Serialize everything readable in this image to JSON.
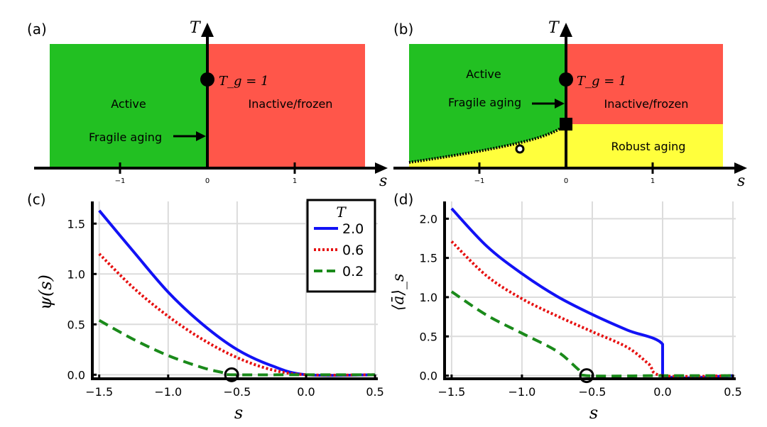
{
  "chart_data": [
    {
      "panel": "(a)",
      "type": "phase-diagram",
      "x_axis_label": "s",
      "y_axis_label": "T",
      "x_ticks": [
        {
          "value": -1,
          "label": "−1"
        },
        {
          "value": 0,
          "label": "0"
        },
        {
          "value": 1,
          "label": "1"
        }
      ],
      "xlim": [
        -1.8,
        1.8
      ],
      "regions": [
        {
          "name": "Active",
          "color": "#22c022",
          "x_range": [
            -1.8,
            0
          ]
        },
        {
          "name": "Inactive/frozen",
          "color": "#ff564a",
          "x_range": [
            0,
            1.8
          ]
        }
      ],
      "annotations": {
        "tg": "T_g = 1",
        "fragile": "Fragile aging"
      }
    },
    {
      "panel": "(b)",
      "type": "phase-diagram",
      "x_axis_label": "s",
      "y_axis_label": "T",
      "x_ticks": [
        {
          "value": -1,
          "label": "−1"
        },
        {
          "value": 0,
          "label": "0"
        },
        {
          "value": 1,
          "label": "1"
        }
      ],
      "xlim": [
        -1.8,
        1.8
      ],
      "regions": [
        {
          "name": "Active",
          "color": "#22c022"
        },
        {
          "name": "Inactive/frozen",
          "color": "#ff564a"
        },
        {
          "name": "Robust aging",
          "color": "#ffff3c"
        }
      ],
      "annotations": {
        "tg": "T_g = 1",
        "fragile": "Fragile aging"
      }
    },
    {
      "panel": "(c)",
      "type": "line",
      "xlabel": "s",
      "ylabel": "ψ(s)",
      "xlim": [
        -1.55,
        0.52
      ],
      "ylim": [
        -0.04,
        1.72
      ],
      "xticks": [
        -1.5,
        -1.0,
        -0.5,
        0.0,
        0.5
      ],
      "yticks": [
        0.0,
        0.5,
        1.0,
        1.5
      ],
      "grid": true,
      "legend_title": "T",
      "legend_position": "top-right",
      "marker_open_circle": {
        "x": -0.54,
        "y": 0.0
      },
      "series": [
        {
          "name": "2.0",
          "color": "#1212f5",
          "dash": "solid",
          "x": [
            -1.5,
            -1.25,
            -1.0,
            -0.75,
            -0.5,
            -0.25,
            0.0,
            0.5
          ],
          "y": [
            1.63,
            1.22,
            0.82,
            0.5,
            0.25,
            0.09,
            0.0,
            0.0
          ]
        },
        {
          "name": "0.6",
          "color": "#e61010",
          "dash": "dotted",
          "x": [
            -1.5,
            -1.25,
            -1.0,
            -0.75,
            -0.5,
            -0.25,
            0.0,
            0.5
          ],
          "y": [
            1.2,
            0.86,
            0.58,
            0.35,
            0.17,
            0.05,
            0.0,
            0.0
          ]
        },
        {
          "name": "0.2",
          "color": "#1a8a1a",
          "dash": "dashed",
          "x": [
            -1.5,
            -1.25,
            -1.0,
            -0.75,
            -0.6,
            -0.54,
            0.0,
            0.5
          ],
          "y": [
            0.54,
            0.35,
            0.19,
            0.07,
            0.02,
            0.0,
            0.0,
            0.0
          ]
        }
      ]
    },
    {
      "panel": "(d)",
      "type": "line",
      "xlabel": "s",
      "ylabel": "⟨ā⟩_s",
      "xlim": [
        -1.55,
        0.52
      ],
      "ylim": [
        -0.04,
        2.22
      ],
      "xticks": [
        -1.5,
        -1.0,
        -0.5,
        0.0,
        0.5
      ],
      "yticks": [
        0.0,
        0.5,
        1.0,
        1.5,
        2.0
      ],
      "grid": true,
      "marker_open_circle": {
        "x": -0.54,
        "y": 0.0
      },
      "series": [
        {
          "name": "2.0",
          "color": "#1212f5",
          "dash": "solid",
          "x": [
            -1.5,
            -1.25,
            -1.0,
            -0.75,
            -0.5,
            -0.25,
            0.0,
            0.0,
            0.5
          ],
          "y": [
            2.13,
            1.65,
            1.3,
            1.01,
            0.78,
            0.58,
            0.4,
            0.0,
            0.0
          ]
        },
        {
          "name": "0.6",
          "color": "#e61010",
          "dash": "dotted",
          "x": [
            -1.5,
            -1.25,
            -1.0,
            -0.75,
            -0.5,
            -0.25,
            -0.1,
            0.0,
            0.5
          ],
          "y": [
            1.71,
            1.27,
            0.98,
            0.76,
            0.56,
            0.36,
            0.15,
            0.0,
            0.0
          ]
        },
        {
          "name": "0.2",
          "color": "#1a8a1a",
          "dash": "dashed",
          "x": [
            -1.5,
            -1.25,
            -1.0,
            -0.75,
            -0.6,
            -0.54,
            0.0,
            0.5
          ],
          "y": [
            1.07,
            0.77,
            0.54,
            0.31,
            0.08,
            0.0,
            0.0,
            0.0
          ]
        }
      ]
    }
  ]
}
